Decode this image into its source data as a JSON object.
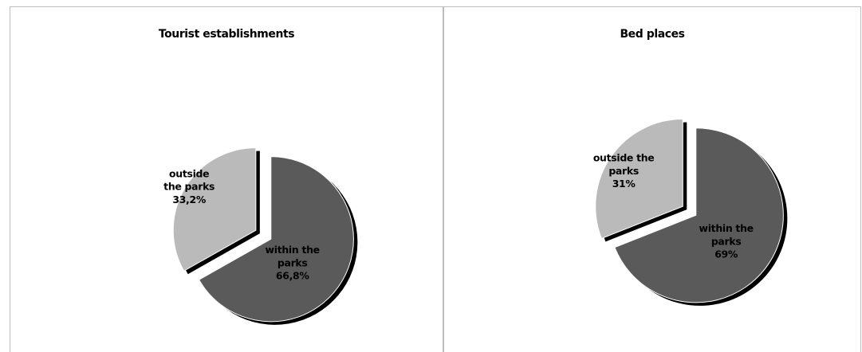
{
  "chart_data": [
    {
      "type": "pie",
      "title": "Tourist establishments",
      "slices": [
        {
          "label_lines": [
            "within the",
            "parks",
            "66,8%"
          ],
          "value": 66.8,
          "color": "#5a5a5a"
        },
        {
          "label_lines": [
            "outside",
            "the parks",
            "33,2%"
          ],
          "value": 33.2,
          "color": "#bababa"
        }
      ]
    },
    {
      "type": "pie",
      "title": "Bed places",
      "slices": [
        {
          "label_lines": [
            "within the",
            "parks",
            "69%"
          ],
          "value": 69,
          "color": "#5a5a5a"
        },
        {
          "label_lines": [
            "outside the",
            "parks",
            "31%"
          ],
          "value": 31,
          "color": "#bababa"
        }
      ]
    }
  ]
}
